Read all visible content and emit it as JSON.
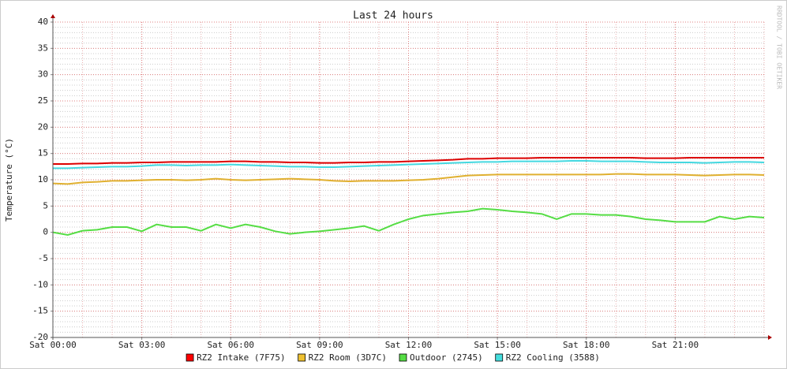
{
  "chart_data": {
    "type": "line",
    "title": "Last 24 hours",
    "y_label": "Temperature (°C)",
    "watermark": "RRDTOOL / TOBI OETIKER",
    "xlim": [
      0,
      24
    ],
    "ylim": [
      -20,
      40
    ],
    "yticks": [
      -20,
      -15,
      -10,
      -5,
      0,
      5,
      10,
      15,
      20,
      25,
      30,
      35,
      40
    ],
    "xticks": [
      {
        "value": 0,
        "label": "Sat 00:00"
      },
      {
        "value": 3,
        "label": "Sat 03:00"
      },
      {
        "value": 6,
        "label": "Sat 06:00"
      },
      {
        "value": 9,
        "label": "Sat 09:00"
      },
      {
        "value": 12,
        "label": "Sat 12:00"
      },
      {
        "value": 15,
        "label": "Sat 15:00"
      },
      {
        "value": 18,
        "label": "Sat 18:00"
      },
      {
        "value": 21,
        "label": "Sat 21:00"
      }
    ],
    "grid": true,
    "x": [
      0,
      0.5,
      1,
      1.5,
      2,
      2.5,
      3,
      3.5,
      4,
      4.5,
      5,
      5.5,
      6,
      6.5,
      7,
      7.5,
      8,
      8.5,
      9,
      9.5,
      10,
      10.5,
      11,
      11.5,
      12,
      12.5,
      13,
      13.5,
      14,
      14.5,
      15,
      15.5,
      16,
      16.5,
      17,
      17.5,
      18,
      18.5,
      19,
      19.5,
      20,
      20.5,
      21,
      21.5,
      22,
      22.5,
      23,
      23.5,
      24
    ],
    "series": [
      {
        "name": "RZ2 Intake (7F75)",
        "color": "#dd0000",
        "legend_color": "#ff0000",
        "values": [
          13,
          13,
          13.1,
          13.1,
          13.2,
          13.2,
          13.3,
          13.3,
          13.4,
          13.4,
          13.4,
          13.4,
          13.5,
          13.5,
          13.4,
          13.4,
          13.3,
          13.3,
          13.2,
          13.2,
          13.3,
          13.3,
          13.4,
          13.4,
          13.5,
          13.6,
          13.7,
          13.8,
          14,
          14,
          14.1,
          14.1,
          14.1,
          14.2,
          14.2,
          14.2,
          14.2,
          14.2,
          14.2,
          14.2,
          14.1,
          14.1,
          14.1,
          14.2,
          14.2,
          14.2,
          14.2,
          14.2,
          14.2
        ]
      },
      {
        "name": "RZ2 Room (3D7C)",
        "color": "#e0b030",
        "legend_color": "#eec030",
        "values": [
          9.3,
          9.2,
          9.5,
          9.6,
          9.8,
          9.8,
          9.9,
          10,
          10,
          9.9,
          10,
          10.2,
          10,
          9.9,
          10,
          10.1,
          10.2,
          10.1,
          10,
          9.8,
          9.7,
          9.8,
          9.8,
          9.8,
          9.9,
          10,
          10.2,
          10.5,
          10.8,
          10.9,
          11,
          11,
          11,
          11,
          11,
          11,
          11,
          11,
          11.1,
          11.1,
          11,
          11,
          11,
          10.9,
          10.8,
          10.9,
          11,
          11,
          10.9
        ]
      },
      {
        "name": "Outdoor (2745)",
        "color": "#55dd44",
        "legend_color": "#55dd44",
        "values": [
          0,
          -0.5,
          0.3,
          0.5,
          1,
          1,
          0.2,
          1.5,
          1,
          1,
          0.3,
          1.5,
          0.8,
          1.5,
          1,
          0.2,
          -0.3,
          0,
          0.2,
          0.5,
          0.8,
          1.2,
          0.3,
          1.5,
          2.5,
          3.2,
          3.5,
          3.8,
          4,
          4.5,
          4.3,
          4,
          3.8,
          3.5,
          2.5,
          3.5,
          3.5,
          3.3,
          3.3,
          3,
          2.5,
          2.3,
          2,
          2,
          2,
          3,
          2.5,
          3,
          2.8
        ]
      },
      {
        "name": "RZ2 Cooling (3588)",
        "color": "#44d8e0",
        "legend_color": "#44dddd",
        "values": [
          12.2,
          12.2,
          12.3,
          12.4,
          12.5,
          12.5,
          12.6,
          12.8,
          12.8,
          12.7,
          12.8,
          12.8,
          12.9,
          12.8,
          12.7,
          12.6,
          12.5,
          12.5,
          12.4,
          12.4,
          12.5,
          12.6,
          12.7,
          12.8,
          12.9,
          13,
          13.1,
          13.2,
          13.3,
          13.4,
          13.4,
          13.5,
          13.5,
          13.5,
          13.5,
          13.6,
          13.6,
          13.5,
          13.5,
          13.5,
          13.4,
          13.3,
          13.3,
          13.3,
          13.2,
          13.3,
          13.4,
          13.4,
          13.3
        ]
      }
    ]
  }
}
